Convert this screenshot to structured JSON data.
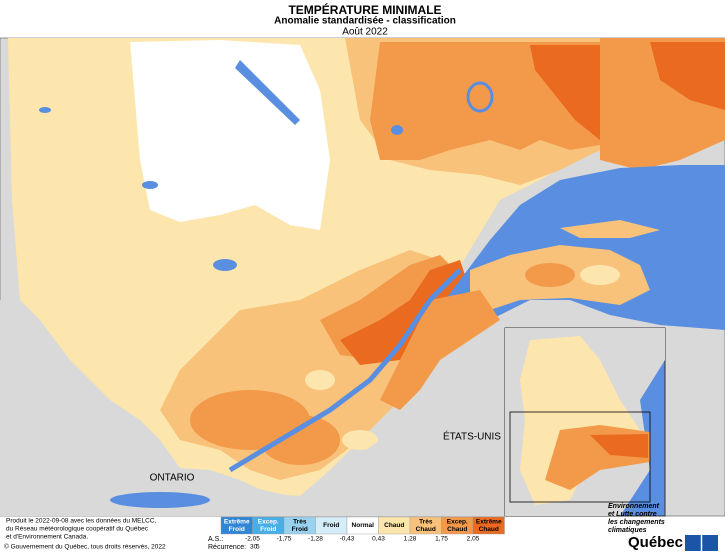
{
  "header": {
    "title": "TEMPÉRATURE MINIMALE",
    "subtitle": "Anomalie standardisée - classification",
    "date": "Août 2022"
  },
  "labels": {
    "ontario": "ONTARIO",
    "etats_unis": "ÉTATS-UNIS"
  },
  "legend": {
    "classes": [
      {
        "lines": [
          "Extrême",
          "Froid"
        ],
        "color": "#2f86d4"
      },
      {
        "lines": [
          "Excep.",
          "Froid"
        ],
        "color": "#47aee6"
      },
      {
        "lines": [
          "Très",
          "Froid"
        ],
        "color": "#98d2ef"
      },
      {
        "lines": [
          "Froid"
        ],
        "color": "#d4edf8"
      },
      {
        "lines": [
          "Normal"
        ],
        "color": "#ffffff"
      },
      {
        "lines": [
          "Chaud"
        ],
        "color": "#fde6ad"
      },
      {
        "lines": [
          "Très",
          "Chaud"
        ],
        "color": "#f9c27b"
      },
      {
        "lines": [
          "Excep.",
          "Chaud"
        ],
        "color": "#f39a4a"
      },
      {
        "lines": [
          "Extrême",
          "Chaud"
        ],
        "color": "#ea6a20"
      }
    ],
    "as_label": "A.S.:",
    "as_values": [
      "-2,05",
      "-1,75",
      "-1,28",
      "-0,43",
      "0,43",
      "1,28",
      "1,75",
      "2,05"
    ],
    "recurrence_label": "Récurrence:",
    "recurrence_values": [
      "30",
      "5"
    ]
  },
  "credits": {
    "lines": [
      "Produit le 2022-09-08 avec les données du MELCC,",
      "du Réseau météorologique coopératif du Québec",
      "et d'Environnement Canada."
    ],
    "copyright": "© Gouvernement du Québec, tous droits réservés, 2022"
  },
  "logo": {
    "department": [
      "Environnement",
      "et Lutte contre",
      "les changements",
      "climatiques"
    ],
    "name": "Québec"
  }
}
